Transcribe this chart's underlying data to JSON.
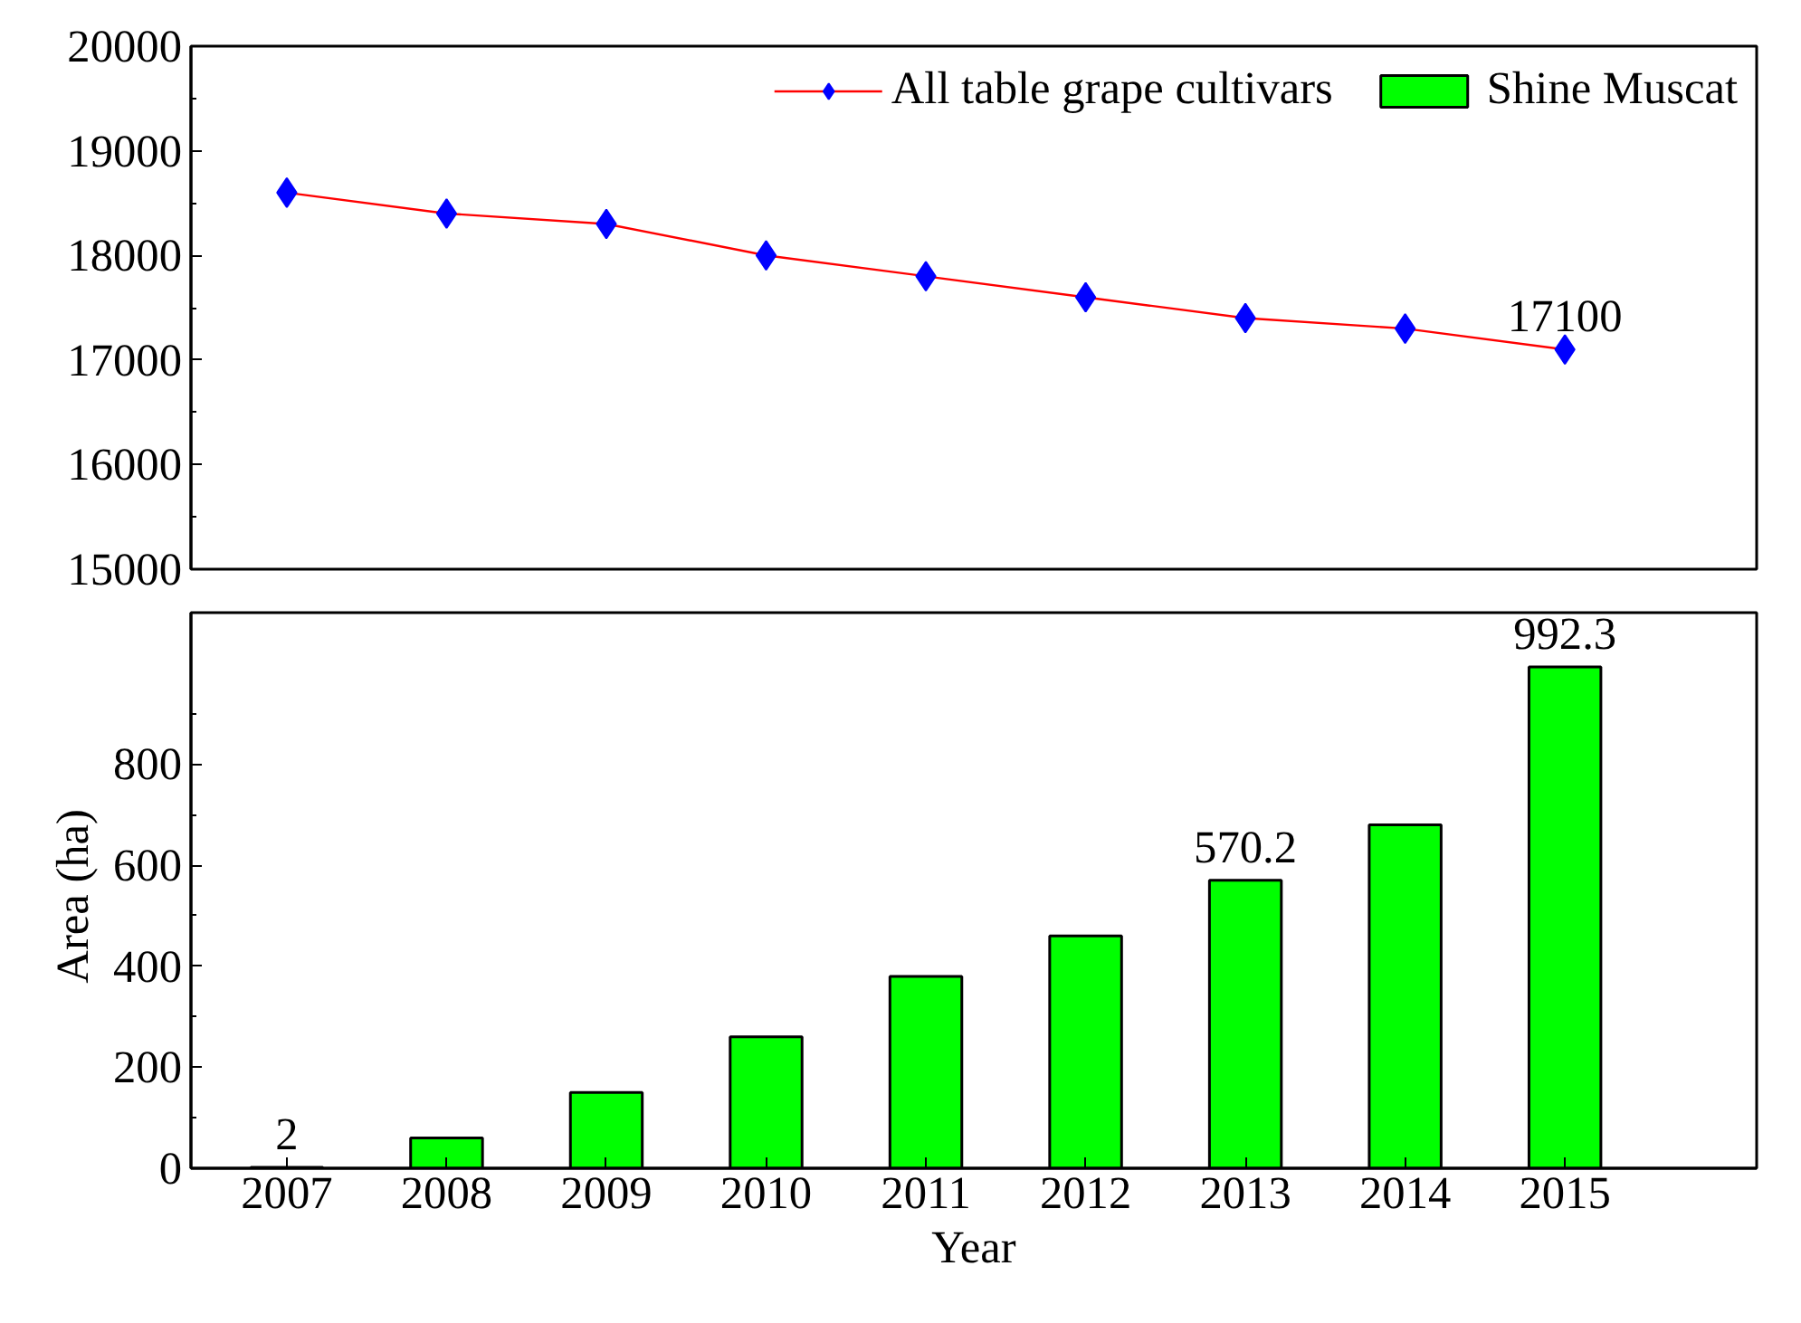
{
  "chart_data": [
    {
      "type": "line",
      "categories": [
        "2007",
        "2008",
        "2009",
        "2010",
        "2011",
        "2012",
        "2013",
        "2014",
        "2015"
      ],
      "ylim": [
        15000,
        20000
      ],
      "yticks": [
        15000,
        16000,
        17000,
        18000,
        19000,
        20000
      ],
      "tick_labels": "y",
      "legend": "top right",
      "marker": "diamond",
      "series": [
        {
          "name": "All table grape cultivars",
          "color": "#ff0000",
          "colors": [
            "#0000ff",
            "#0000ff",
            "#0000ff",
            "#0000ff",
            "#0000ff",
            "#0000ff",
            "#0000ff",
            "#0000ff",
            "#0000ff"
          ],
          "values": [
            18600,
            18400,
            18300,
            18000,
            17800,
            17600,
            17400,
            17300,
            17100
          ],
          "value_labels": [
            null,
            null,
            null,
            null,
            null,
            null,
            null,
            null,
            "17100"
          ]
        }
      ]
    },
    {
      "type": "bar",
      "categories": [
        "2007",
        "2008",
        "2009",
        "2010",
        "2011",
        "2012",
        "2013",
        "2014",
        "2015"
      ],
      "xlabel": "Year",
      "ylabel": "Area  (ha)",
      "ylim": [
        0,
        1100
      ],
      "yticks": [
        0,
        200,
        400,
        600,
        800
      ],
      "series": [
        {
          "name": "Shine Muscat",
          "color": "#00ff00",
          "values": [
            2,
            60,
            150,
            260,
            380,
            460,
            570.2,
            680,
            992.3
          ],
          "value_labels": [
            "2",
            null,
            null,
            null,
            null,
            null,
            "570.2",
            null,
            "992.3"
          ]
        }
      ]
    }
  ]
}
